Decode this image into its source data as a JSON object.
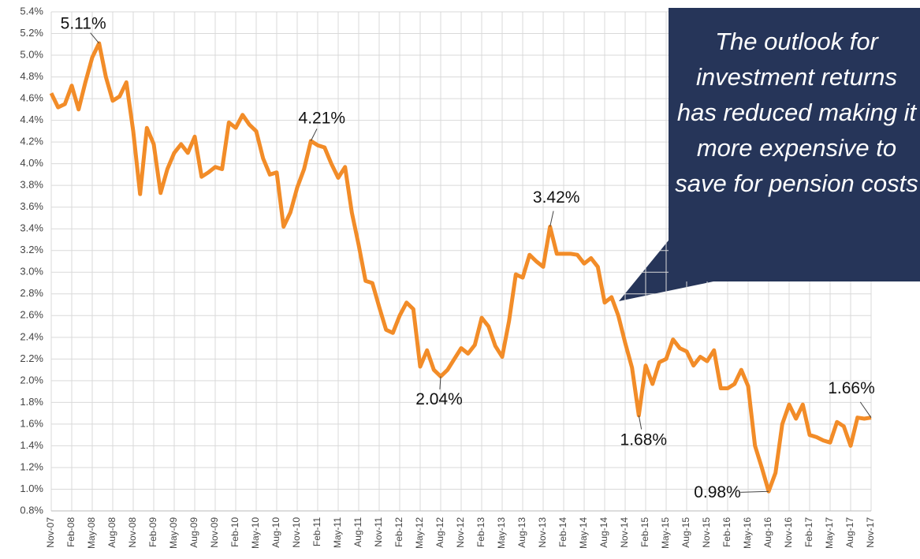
{
  "chart_data": {
    "type": "line",
    "annotation": "The outlook for investment returns has reduced making it more expensive to save for pension costs",
    "categories": [
      "Nov-07",
      null,
      null,
      "Feb-08",
      null,
      null,
      "May-08",
      null,
      null,
      "Aug-08",
      null,
      null,
      "Nov-08",
      null,
      null,
      "Feb-09",
      null,
      null,
      "May-09",
      null,
      null,
      "Aug-09",
      null,
      null,
      "Nov-09",
      null,
      null,
      "Feb-10",
      null,
      null,
      "May-10",
      null,
      null,
      "Aug-10",
      null,
      null,
      "Nov-10",
      null,
      null,
      "Feb-11",
      null,
      null,
      "May-11",
      null,
      null,
      "Aug-11",
      null,
      null,
      "Nov-11",
      null,
      null,
      "Feb-12",
      null,
      null,
      "May-12",
      null,
      null,
      "Aug-12",
      null,
      null,
      "Nov-12",
      null,
      null,
      "Feb-13",
      null,
      null,
      "May-13",
      null,
      null,
      "Aug-13",
      null,
      null,
      "Nov-13",
      null,
      null,
      "Feb-14",
      null,
      null,
      "May-14",
      null,
      null,
      "Aug-14",
      null,
      null,
      "Nov-14",
      null,
      null,
      "Feb-15",
      null,
      null,
      "May-15",
      null,
      null,
      "Aug-15",
      null,
      null,
      "Nov-15",
      null,
      null,
      "Feb-16",
      null,
      null,
      "May-16",
      null,
      null,
      "Aug-16",
      null,
      null,
      "Nov-16",
      null,
      null,
      "Feb-17",
      null,
      null,
      "May-17",
      null,
      null,
      "Aug-17",
      null,
      null,
      "Nov-17"
    ],
    "values": [
      4.65,
      4.52,
      4.55,
      4.72,
      4.5,
      4.75,
      4.98,
      5.11,
      4.8,
      4.58,
      4.62,
      4.75,
      4.3,
      3.72,
      4.33,
      4.18,
      3.73,
      3.95,
      4.1,
      4.18,
      4.1,
      4.25,
      3.88,
      3.92,
      3.97,
      3.95,
      4.38,
      4.33,
      4.45,
      4.36,
      4.3,
      4.05,
      3.9,
      3.92,
      3.42,
      3.55,
      3.78,
      3.95,
      4.21,
      4.17,
      4.15,
      4.0,
      3.87,
      3.97,
      3.55,
      3.25,
      2.92,
      2.9,
      2.68,
      2.47,
      2.44,
      2.6,
      2.72,
      2.66,
      2.13,
      2.28,
      2.1,
      2.04,
      2.1,
      2.2,
      2.3,
      2.25,
      2.33,
      2.58,
      2.5,
      2.32,
      2.22,
      2.55,
      2.98,
      2.95,
      3.16,
      3.1,
      3.05,
      3.42,
      3.17,
      3.17,
      3.17,
      3.16,
      3.08,
      3.13,
      3.05,
      2.72,
      2.77,
      2.6,
      2.35,
      2.12,
      1.68,
      2.14,
      1.97,
      2.17,
      2.2,
      2.38,
      2.3,
      2.27,
      2.14,
      2.22,
      2.18,
      2.28,
      1.93,
      1.93,
      1.97,
      2.1,
      1.95,
      1.4,
      1.2,
      0.98,
      1.15,
      1.6,
      1.78,
      1.65,
      1.78,
      1.5,
      1.48,
      1.45,
      1.43,
      1.62,
      1.58,
      1.4,
      1.66,
      1.65,
      1.66
    ],
    "value_labels": [
      null,
      null,
      null,
      null,
      null,
      null,
      null,
      "5.11%",
      null,
      null,
      null,
      null,
      null,
      null,
      null,
      null,
      null,
      null,
      null,
      null,
      null,
      null,
      null,
      null,
      null,
      null,
      null,
      null,
      null,
      null,
      null,
      null,
      null,
      null,
      null,
      null,
      null,
      null,
      "4.21%",
      null,
      null,
      null,
      null,
      null,
      null,
      null,
      null,
      null,
      null,
      null,
      null,
      null,
      null,
      null,
      null,
      null,
      null,
      "2.04%",
      null,
      null,
      null,
      null,
      null,
      null,
      null,
      null,
      null,
      null,
      null,
      null,
      null,
      null,
      null,
      "3.42%",
      null,
      null,
      null,
      null,
      null,
      null,
      null,
      null,
      null,
      null,
      null,
      null,
      "1.68%",
      null,
      null,
      null,
      null,
      null,
      null,
      null,
      null,
      null,
      null,
      null,
      null,
      null,
      null,
      null,
      null,
      null,
      null,
      "0.98%",
      null,
      null,
      null,
      null,
      null,
      null,
      null,
      null,
      null,
      null,
      null,
      null,
      null,
      null,
      "1.66%"
    ],
    "color": "#f28c28",
    "ylim": [
      0.8,
      5.4
    ],
    "yticks": [
      {
        "value": 0.8,
        "label": "0.8%"
      },
      {
        "value": 1.0,
        "label": "1.0%"
      },
      {
        "value": 1.2,
        "label": "1.2%"
      },
      {
        "value": 1.4,
        "label": "1.4%"
      },
      {
        "value": 1.6,
        "label": "1.6%"
      },
      {
        "value": 1.8,
        "label": "1.8%"
      },
      {
        "value": 2.0,
        "label": "2.0%"
      },
      {
        "value": 2.2,
        "label": "2.2%"
      },
      {
        "value": 2.4,
        "label": "2.4%"
      },
      {
        "value": 2.6,
        "label": "2.6%"
      },
      {
        "value": 2.8,
        "label": "2.8%"
      },
      {
        "value": 3.0,
        "label": "3.0%"
      },
      {
        "value": 3.2,
        "label": "3.2%"
      },
      {
        "value": 3.4,
        "label": "3.4%"
      },
      {
        "value": 3.6,
        "label": "3.6%"
      },
      {
        "value": 3.8,
        "label": "3.8%"
      },
      {
        "value": 4.0,
        "label": "4.0%"
      },
      {
        "value": 4.2,
        "label": "4.2%"
      },
      {
        "value": 4.4,
        "label": "4.4%"
      },
      {
        "value": 4.6,
        "label": "4.6%"
      },
      {
        "value": 4.8,
        "label": "4.8%"
      },
      {
        "value": 5.0,
        "label": "5.0%"
      },
      {
        "value": 5.2,
        "label": "5.2%"
      },
      {
        "value": 5.4,
        "label": "5.4%"
      }
    ],
    "grid": true
  }
}
